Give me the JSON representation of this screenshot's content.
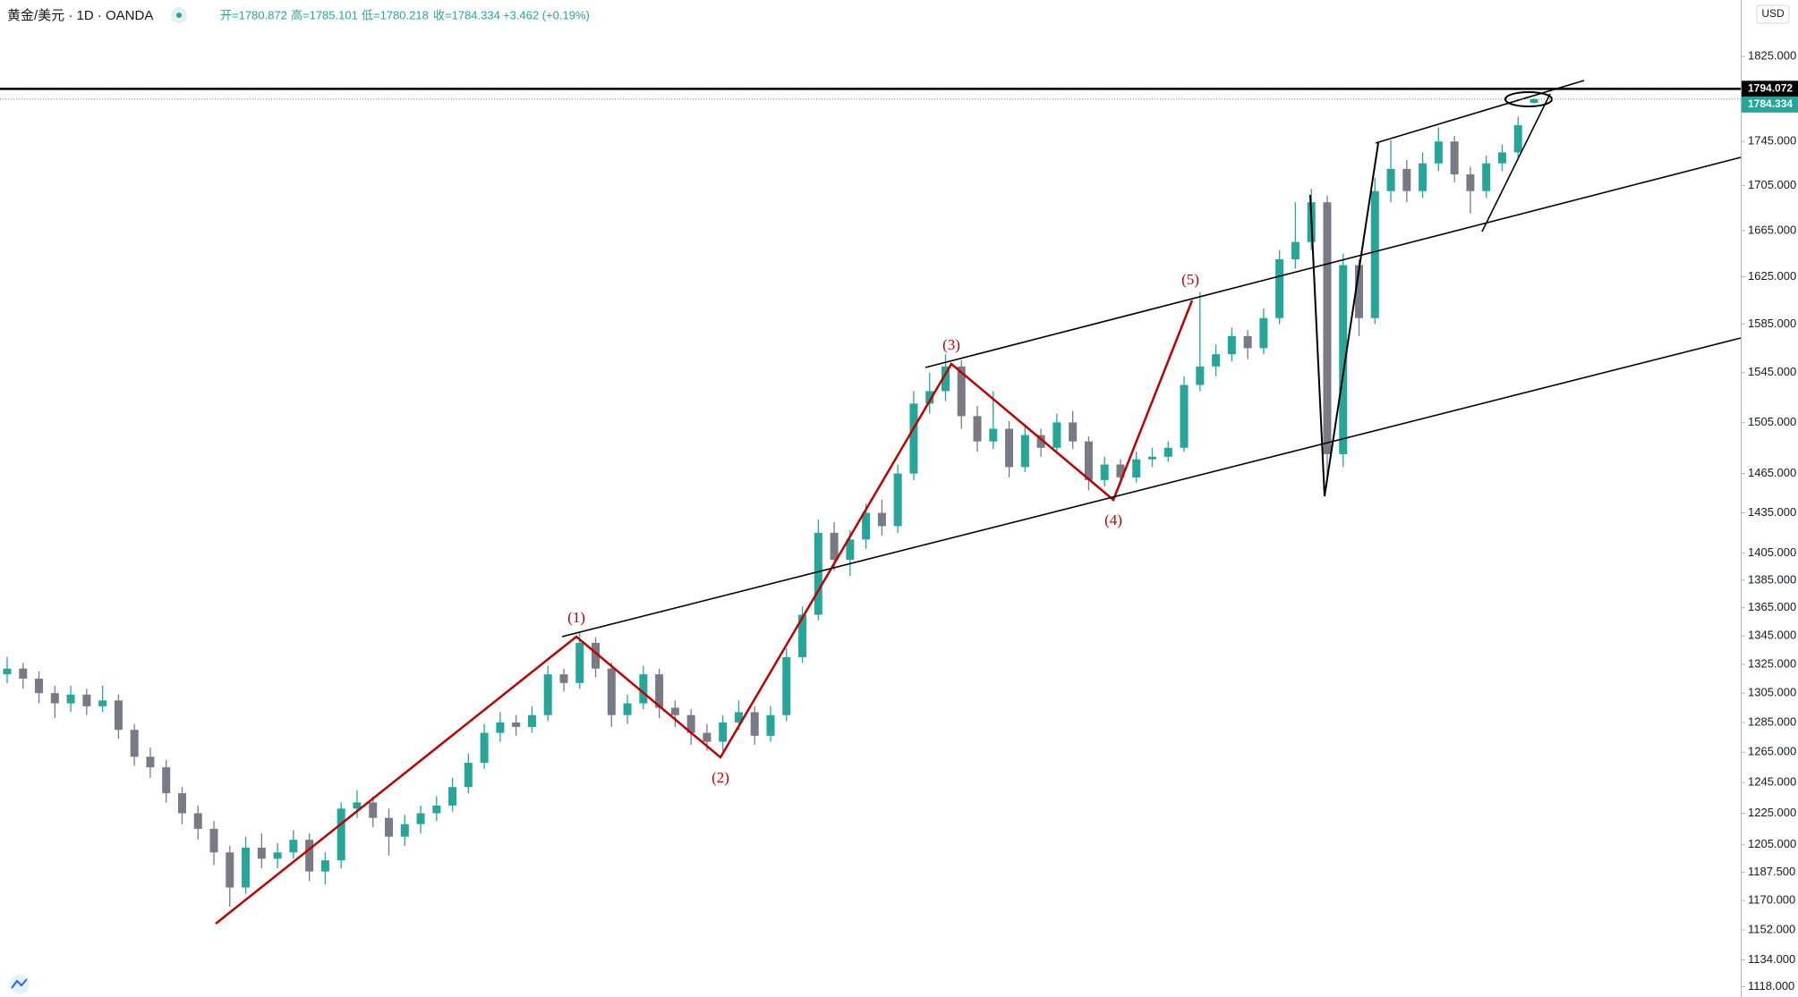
{
  "chart_data": {
    "type": "candlestick",
    "title": "黄金/美元 · 1D · OANDA",
    "legend_ohlc": [
      "开=1780.872",
      "高=1785.101",
      "低=1780.218",
      "收=1784.334",
      "+3.462 (+0.19%)"
    ],
    "currency": "USD",
    "log_scale": true,
    "grid": false,
    "up_color": "#26a69a",
    "down_color": "#787b86",
    "ylim": [
      1112,
      1880
    ],
    "yticks": [
      {
        "value": 1118,
        "label": "1118.000"
      },
      {
        "value": 1134,
        "label": "1134.000"
      },
      {
        "value": 1152,
        "label": "1152.000"
      },
      {
        "value": 1170,
        "label": "1170.000"
      },
      {
        "value": 1187.5,
        "label": "1187.500"
      },
      {
        "value": 1205,
        "label": "1205.000"
      },
      {
        "value": 1225,
        "label": "1225.000"
      },
      {
        "value": 1245,
        "label": "1245.000"
      },
      {
        "value": 1265,
        "label": "1265.000"
      },
      {
        "value": 1285,
        "label": "1285.000"
      },
      {
        "value": 1305,
        "label": "1305.000"
      },
      {
        "value": 1325,
        "label": "1325.000"
      },
      {
        "value": 1345,
        "label": "1345.000"
      },
      {
        "value": 1365,
        "label": "1365.000"
      },
      {
        "value": 1385,
        "label": "1385.000"
      },
      {
        "value": 1405,
        "label": "1405.000"
      },
      {
        "value": 1435,
        "label": "1435.000"
      },
      {
        "value": 1465,
        "label": "1465.000"
      },
      {
        "value": 1505,
        "label": "1505.000"
      },
      {
        "value": 1545,
        "label": "1545.000"
      },
      {
        "value": 1585,
        "label": "1585.000"
      },
      {
        "value": 1625,
        "label": "1625.000"
      },
      {
        "value": 1665,
        "label": "1665.000"
      },
      {
        "value": 1705,
        "label": "1705.000"
      },
      {
        "value": 1745,
        "label": "1745.000"
      },
      {
        "value": 1825,
        "label": "1825.000"
      }
    ],
    "price_lines": [
      {
        "value": 1794.072,
        "color": "#000000"
      },
      {
        "value": 1784.334,
        "color": "#26a69a"
      }
    ],
    "annotations": [
      "(1)",
      "(2)",
      "(3)",
      "(4)",
      "(5)"
    ],
    "open": [
      1318,
      1322,
      1315,
      1305,
      1298,
      1304,
      1296,
      1300,
      1280,
      1262,
      1255,
      1238,
      1225,
      1215,
      1200,
      1178,
      1203,
      1196,
      1200,
      1208,
      1188,
      1195,
      1228,
      1232,
      1222,
      1210,
      1218,
      1225,
      1230,
      1242,
      1258,
      1278,
      1285,
      1282,
      1290,
      1318,
      1312,
      1340,
      1322,
      1290,
      1298,
      1318,
      1295,
      1290,
      1278,
      1272,
      1285,
      1292,
      1276,
      1290,
      1330,
      1360,
      1420,
      1400,
      1415,
      1435,
      1425,
      1465,
      1520,
      1530,
      1550,
      1510,
      1490,
      1500,
      1470,
      1495,
      1485,
      1505,
      1490,
      1460,
      1472,
      1462,
      1476,
      1478,
      1485,
      1535,
      1550,
      1560,
      1575,
      1565,
      1590,
      1640,
      1655,
      1690,
      1480,
      1635,
      1590,
      1700,
      1720,
      1700,
      1725,
      1745,
      1715,
      1700,
      1725,
      1735,
      1780.872
    ],
    "high": [
      1330,
      1326,
      1320,
      1310,
      1310,
      1308,
      1310,
      1304,
      1284,
      1268,
      1260,
      1242,
      1230,
      1220,
      1204,
      1210,
      1212,
      1206,
      1214,
      1212,
      1200,
      1232,
      1240,
      1236,
      1228,
      1224,
      1230,
      1236,
      1248,
      1264,
      1284,
      1292,
      1290,
      1296,
      1324,
      1322,
      1348,
      1344,
      1326,
      1304,
      1324,
      1322,
      1300,
      1294,
      1284,
      1290,
      1300,
      1296,
      1296,
      1336,
      1366,
      1430,
      1428,
      1422,
      1442,
      1445,
      1472,
      1530,
      1545,
      1560,
      1555,
      1518,
      1530,
      1506,
      1502,
      1500,
      1512,
      1514,
      1494,
      1478,
      1476,
      1482,
      1485,
      1490,
      1542,
      1612,
      1568,
      1582,
      1580,
      1598,
      1648,
      1690,
      1702,
      1696,
      1645,
      1640,
      1712,
      1746,
      1728,
      1735,
      1758,
      1750,
      1722,
      1732,
      1742,
      1768,
      1785.101
    ],
    "low": [
      1312,
      1308,
      1298,
      1288,
      1292,
      1290,
      1292,
      1274,
      1256,
      1248,
      1232,
      1218,
      1208,
      1192,
      1166,
      1174,
      1190,
      1190,
      1196,
      1182,
      1180,
      1190,
      1222,
      1216,
      1198,
      1204,
      1212,
      1220,
      1226,
      1238,
      1254,
      1272,
      1276,
      1278,
      1286,
      1306,
      1308,
      1316,
      1282,
      1284,
      1294,
      1288,
      1282,
      1270,
      1266,
      1266,
      1280,
      1270,
      1272,
      1286,
      1326,
      1356,
      1392,
      1388,
      1408,
      1418,
      1420,
      1460,
      1512,
      1522,
      1500,
      1482,
      1484,
      1462,
      1466,
      1478,
      1480,
      1484,
      1452,
      1455,
      1456,
      1458,
      1470,
      1474,
      1482,
      1530,
      1542,
      1554,
      1556,
      1560,
      1585,
      1632,
      1648,
      1458,
      1470,
      1575,
      1585,
      1690,
      1690,
      1694,
      1718,
      1708,
      1680,
      1694,
      1718,
      1730,
      1780.218
    ],
    "close": [
      1322,
      1315,
      1305,
      1298,
      1304,
      1296,
      1300,
      1280,
      1262,
      1255,
      1238,
      1225,
      1215,
      1200,
      1178,
      1203,
      1196,
      1200,
      1208,
      1188,
      1195,
      1228,
      1232,
      1222,
      1210,
      1218,
      1225,
      1230,
      1242,
      1258,
      1278,
      1285,
      1282,
      1290,
      1318,
      1312,
      1340,
      1322,
      1290,
      1298,
      1318,
      1295,
      1290,
      1278,
      1272,
      1285,
      1292,
      1276,
      1290,
      1330,
      1360,
      1420,
      1400,
      1415,
      1435,
      1425,
      1465,
      1520,
      1530,
      1550,
      1510,
      1490,
      1500,
      1470,
      1495,
      1485,
      1505,
      1490,
      1460,
      1472,
      1462,
      1476,
      1478,
      1485,
      1535,
      1550,
      1560,
      1575,
      1565,
      1590,
      1640,
      1655,
      1690,
      1480,
      1635,
      1590,
      1700,
      1720,
      1700,
      1725,
      1745,
      1715,
      1700,
      1725,
      1735,
      1760,
      1784.334
    ]
  }
}
